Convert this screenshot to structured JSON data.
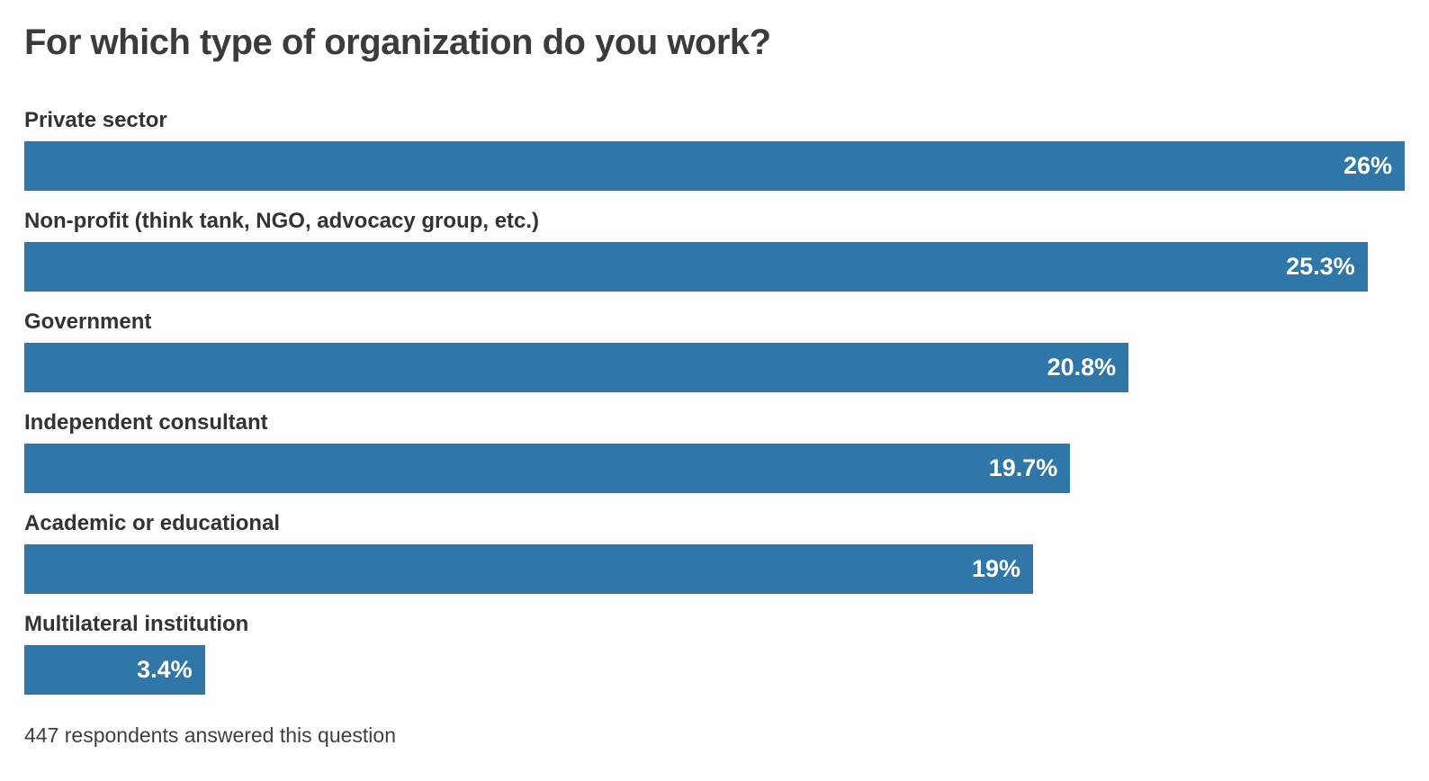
{
  "chart_data": {
    "type": "bar",
    "orientation": "horizontal",
    "title": "For which type of organization do you work?",
    "categories": [
      "Private sector",
      "Non-profit (think tank, NGO, advocacy group, etc.)",
      "Government",
      "Independent consultant",
      "Academic or educational",
      "Multilateral institution"
    ],
    "values": [
      26,
      25.3,
      20.8,
      19.7,
      19,
      3.4
    ],
    "value_labels": [
      "26%",
      "25.3%",
      "20.8%",
      "19.7%",
      "19%",
      "3.4%"
    ],
    "xlim": [
      0,
      26
    ],
    "grid": false,
    "legend": false,
    "value_label_position": "inside-end",
    "footnote": "447 respondents answered this question"
  },
  "colors": {
    "bar": "#2f76a9",
    "value_label": "#ffffff",
    "title": "#3b3b3b",
    "category_label": "#333333",
    "footnote": "#3f3f3f",
    "background": "#ffffff"
  }
}
